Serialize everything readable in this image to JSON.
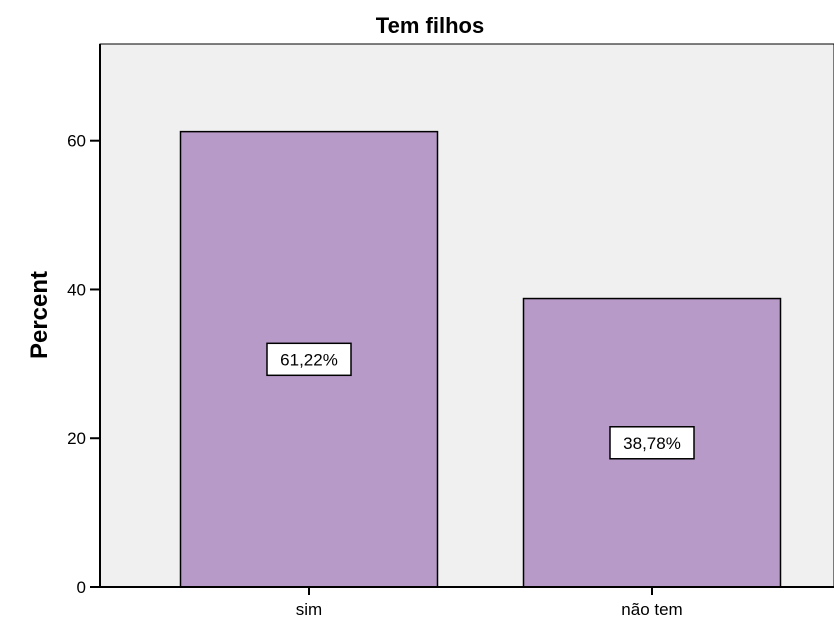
{
  "chart_data": {
    "type": "bar",
    "title": "Tem filhos",
    "xlabel": "",
    "ylabel": "Percent",
    "categories": [
      "sim",
      "não tem"
    ],
    "values": [
      61.22,
      38.78
    ],
    "data_labels": [
      "61,22%",
      "38,78%"
    ],
    "ylim": [
      0,
      73
    ],
    "yticks": [
      0,
      20,
      40,
      60
    ],
    "ytick_labels": [
      "0",
      "20",
      "40",
      "60"
    ],
    "grid": false,
    "legend": "none",
    "colors": {
      "bar_fill": "#B79AC8",
      "bar_stroke": "#000000",
      "plot_background": "#F0F0F0",
      "axis": "#000000",
      "label_box": "#FFFFFF"
    }
  }
}
